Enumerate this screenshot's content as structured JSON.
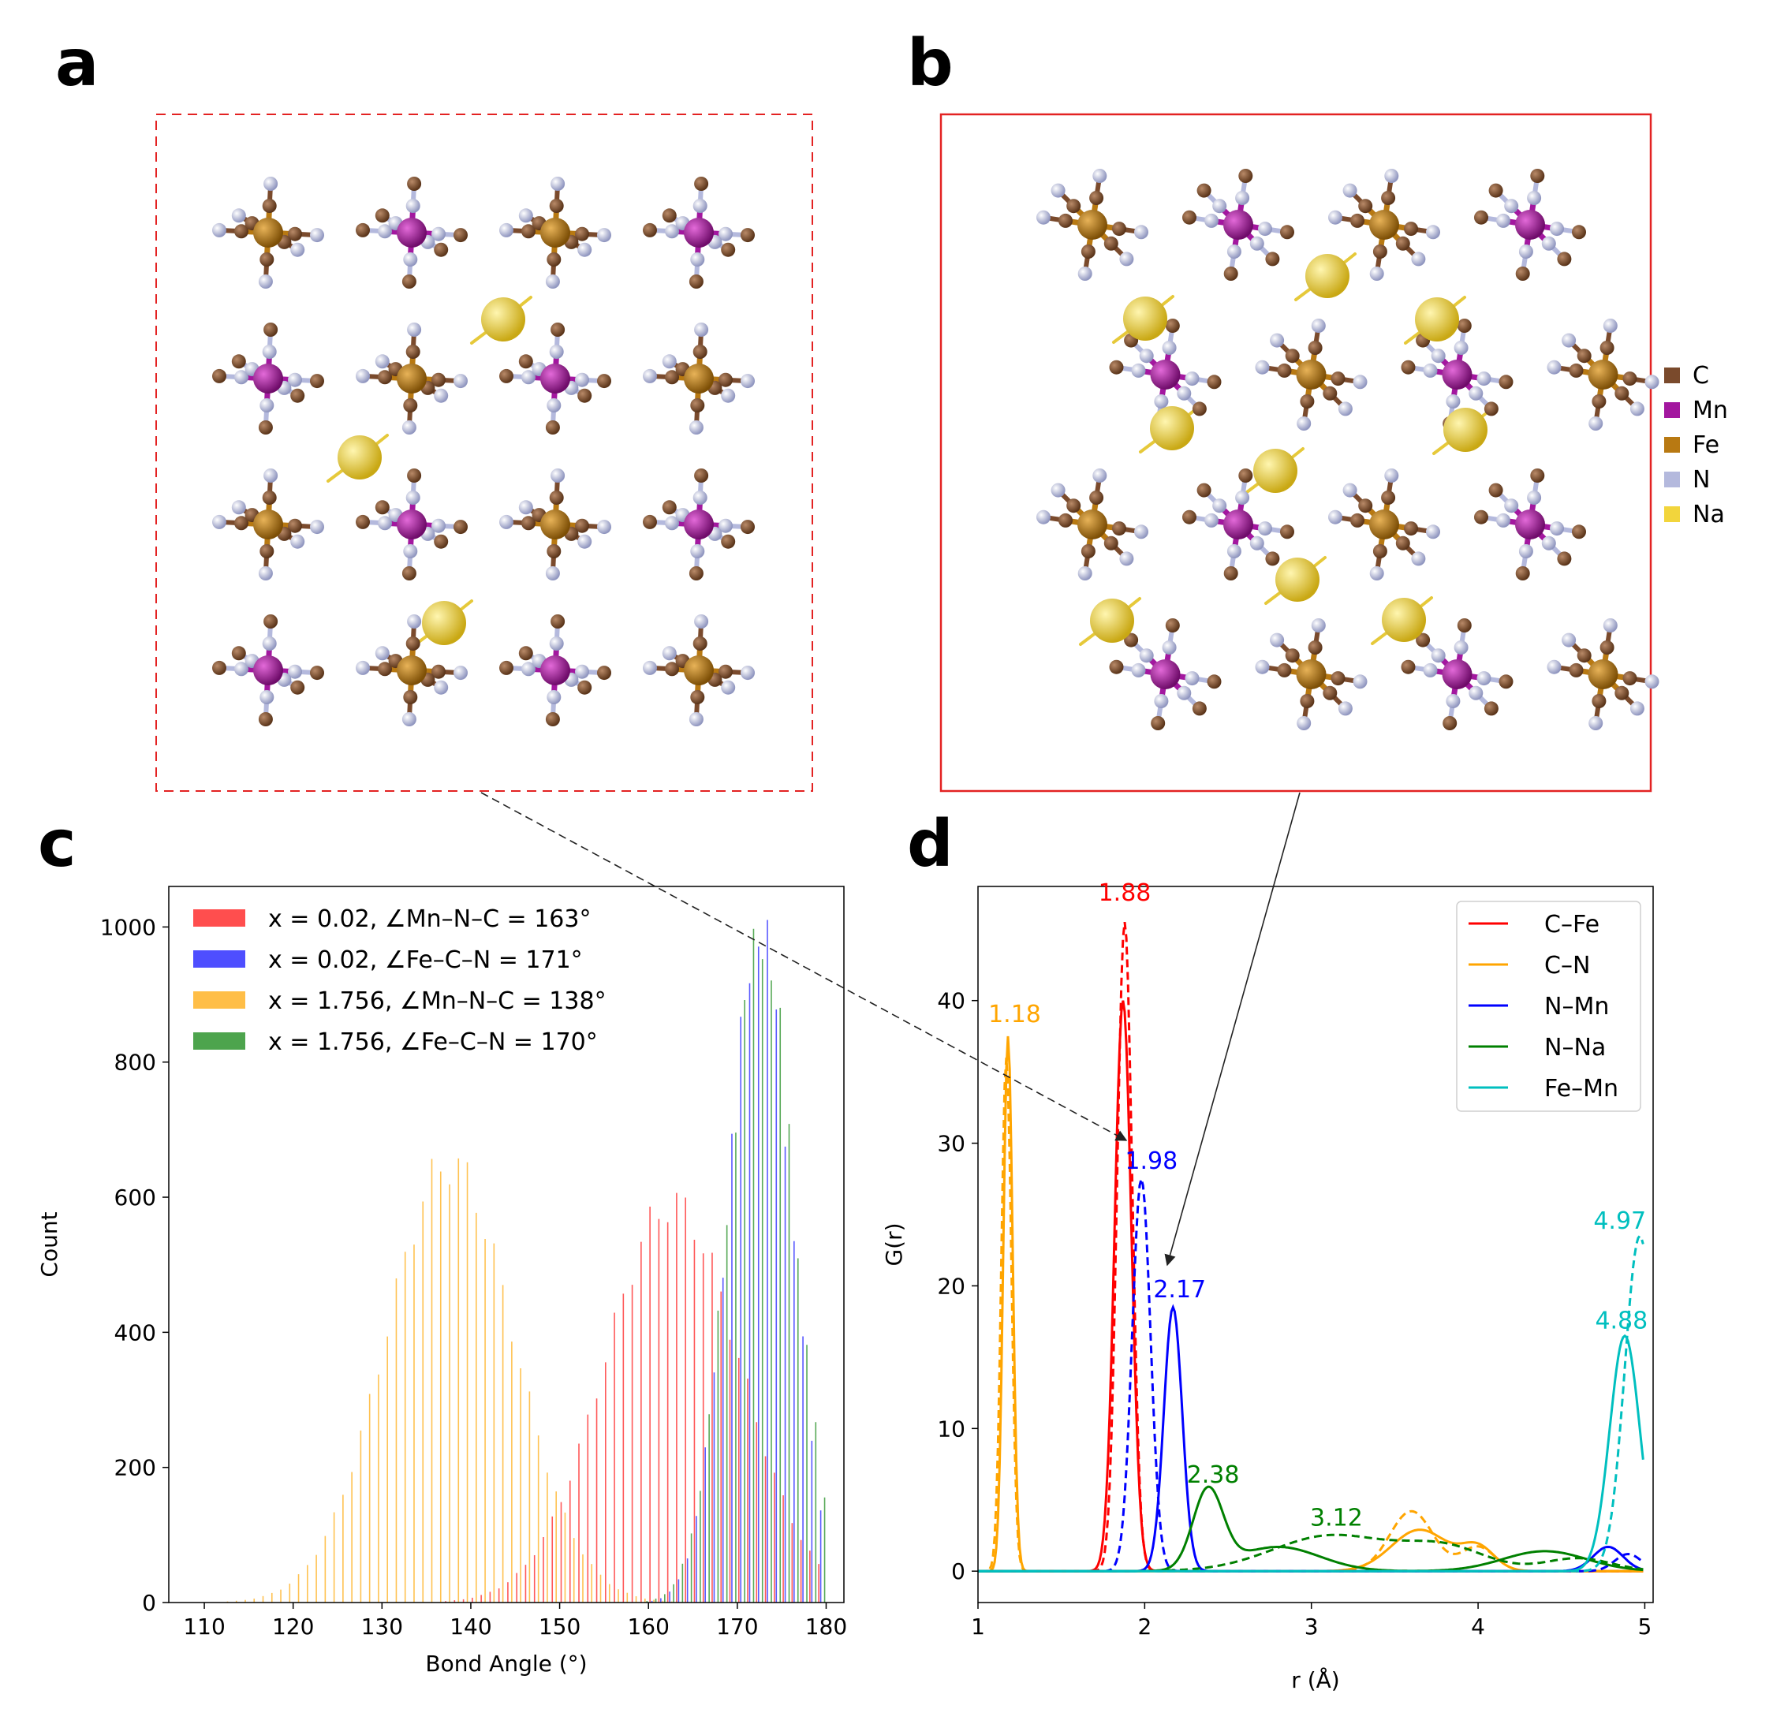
{
  "panel_labels": [
    "a",
    "b",
    "c",
    "d"
  ],
  "structure": {
    "legend": [
      {
        "element": "C",
        "color": "#7a4a2c"
      },
      {
        "element": "Mn",
        "color": "#a3179f"
      },
      {
        "element": "Fe",
        "color": "#b87912"
      },
      {
        "element": "N",
        "color": "#b4b9dd"
      },
      {
        "element": "Na",
        "color": "#f2d53c"
      }
    ]
  },
  "chart_data": [
    {
      "type": "bar",
      "panel": "c",
      "title": "",
      "xlabel": "Bond Angle (°)",
      "ylabel": "Count",
      "xlim": [
        106,
        182
      ],
      "ylim": [
        0,
        1060
      ],
      "xticks": [
        110,
        120,
        130,
        140,
        150,
        160,
        170,
        180
      ],
      "yticks": [
        0,
        200,
        400,
        600,
        800,
        1000
      ],
      "series": [
        {
          "name": "x = 0.02, ∠Mn–N–C = 163°",
          "color": "#ff3b3b",
          "peak": 163,
          "amplitude": 590,
          "sigma": 7.6
        },
        {
          "name": "x = 0.02, ∠Fe–C–N = 171°",
          "color": "#3b3bff",
          "peak": 172.6,
          "amplitude": 1000,
          "sigma": 3.5
        },
        {
          "name": "x = 1.756, ∠Mn–N–C = 138°",
          "color": "#ffb733",
          "peak": 137.5,
          "amplitude": 650,
          "sigma": 7.2
        },
        {
          "name": "x = 1.756, ∠Fe–C–N = 170°",
          "color": "#3a9a3a",
          "peak": 172.4,
          "amplitude": 990,
          "sigma": 3.7
        }
      ]
    },
    {
      "type": "line",
      "panel": "d",
      "title": "",
      "xlabel": "r (Å)",
      "ylabel": "G(r)",
      "xlim": [
        1,
        5.05
      ],
      "ylim": [
        -2.2,
        48
      ],
      "xticks": [
        1,
        2,
        3,
        4,
        5
      ],
      "yticks": [
        0,
        10,
        20,
        30,
        40
      ],
      "series": [
        {
          "name": "C–Fe",
          "color": "#ff0000",
          "solid_peaks": [
            [
              1.87,
              40,
              0.05
            ]
          ],
          "dashed_peaks": [
            [
              1.88,
              45.5,
              0.045
            ]
          ]
        },
        {
          "name": "C–N",
          "color": "#ffa500",
          "solid_peaks": [
            [
              1.18,
              37.5,
              0.028
            ],
            [
              3.65,
              2.9,
              0.17
            ],
            [
              4.0,
              1.6,
              0.1
            ]
          ],
          "dashed_peaks": [
            [
              1.17,
              36,
              0.03
            ],
            [
              3.6,
              4.2,
              0.13
            ],
            [
              4.0,
              1.7,
              0.1
            ]
          ]
        },
        {
          "name": "N–Mn",
          "color": "#0000ff",
          "solid_peaks": [
            [
              2.17,
              18.5,
              0.055
            ],
            [
              4.78,
              1.7,
              0.09
            ]
          ],
          "dashed_peaks": [
            [
              1.98,
              27.5,
              0.055
            ],
            [
              4.9,
              1.2,
              0.08
            ]
          ]
        },
        {
          "name": "N–Na",
          "color": "#008000",
          "solid_peaks": [
            [
              2.38,
              5.5,
              0.09
            ],
            [
              2.8,
              1.7,
              0.25
            ],
            [
              4.4,
              1.4,
              0.25
            ]
          ],
          "dashed_peaks": [
            [
              3.12,
              2.5,
              0.35
            ],
            [
              3.8,
              1.6,
              0.25
            ],
            [
              4.6,
              0.9,
              0.2
            ]
          ]
        },
        {
          "name": "Fe–Mn",
          "color": "#00bfbf",
          "solid_peaks": [
            [
              4.88,
              16.5,
              0.09
            ]
          ],
          "dashed_peaks": [
            [
              4.97,
              23.5,
              0.09
            ]
          ]
        }
      ],
      "annotations": [
        {
          "text": "1.88",
          "color": "#ff0000",
          "x": 1.88,
          "y": 47
        },
        {
          "text": "1.18",
          "color": "#ffa500",
          "x": 1.22,
          "y": 38.5
        },
        {
          "text": "1.98",
          "color": "#0000ff",
          "x": 2.04,
          "y": 28.2
        },
        {
          "text": "2.17",
          "color": "#0000ff",
          "x": 2.21,
          "y": 19.2
        },
        {
          "text": "2.38",
          "color": "#008000",
          "x": 2.41,
          "y": 6.2
        },
        {
          "text": "3.12",
          "color": "#008000",
          "x": 3.15,
          "y": 3.2
        },
        {
          "text": "4.97",
          "color": "#00bfbf",
          "x": 4.85,
          "y": 24.0
        },
        {
          "text": "4.88",
          "color": "#00bfbf",
          "x": 4.86,
          "y": 17.0
        }
      ]
    }
  ]
}
